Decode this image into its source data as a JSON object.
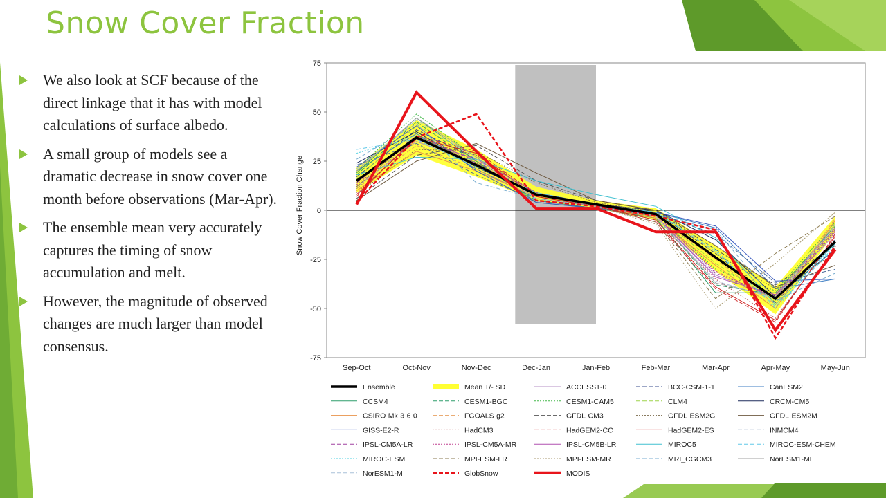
{
  "title": "Snow Cover Fraction",
  "bullets": [
    "We also look at SCF because of the direct linkage that it has with model calculations of surface albedo.",
    "A small group of models see a dramatic decrease in snow cover one month before observations (Mar-Apr).",
    "The ensemble mean very accurately captures the timing of snow accumulation and melt.",
    "However, the magnitude of observed changes are much larger than model consensus."
  ],
  "colors": {
    "accent": "#8dc43f",
    "accent_dark": "#5e9a2a",
    "shade_region": "#c0c0c0",
    "ensemble": "#000000",
    "sd_band": "#ffff33",
    "observations": "#e8141b"
  },
  "chart_data": {
    "type": "line",
    "title": "",
    "xlabel": "",
    "ylabel": "Snow Cover Fraction Change",
    "ylim": [
      -75,
      75
    ],
    "yticks": [
      75,
      50,
      25,
      0,
      -25,
      -50,
      -75
    ],
    "categories": [
      "Sep-Oct",
      "Oct-Nov",
      "Nov-Dec",
      "Dec-Jan",
      "Jan-Feb",
      "Feb-Mar",
      "Mar-Apr",
      "Apr-May",
      "May-Jun"
    ],
    "shaded_region": [
      "Dec-Jan",
      "Jan-Feb"
    ],
    "zero_line": true,
    "band": {
      "name": "Mean +/- SD",
      "color": "#ffff33",
      "lower": [
        9,
        28,
        17,
        5,
        1,
        -5,
        -31,
        -53,
        -11
      ],
      "upper": [
        22,
        46,
        31,
        12,
        5,
        1,
        -18,
        -39,
        -3
      ]
    },
    "series": [
      {
        "name": "Ensemble",
        "color": "#000000",
        "style": "solid",
        "width": 3.5,
        "values": [
          15,
          37,
          23,
          8,
          3,
          -2,
          -24,
          -45,
          -16
        ]
      },
      {
        "name": "ACCESS1-0",
        "color": "#b48fc6",
        "style": "solid",
        "width": 1,
        "values": [
          12,
          35,
          24,
          8,
          2,
          -3,
          -33,
          -44,
          -12
        ]
      },
      {
        "name": "BCC-CSM-1-1",
        "color": "#3a4e8c",
        "style": "dash",
        "width": 1,
        "values": [
          17,
          41,
          26,
          9,
          3,
          -1,
          -22,
          -47,
          -15
        ]
      },
      {
        "name": "CanESM2",
        "color": "#3c7dc3",
        "style": "solid",
        "width": 1,
        "values": [
          20,
          39,
          21,
          6,
          2,
          -1,
          -9,
          -40,
          -35
        ]
      },
      {
        "name": "CCSM4",
        "color": "#2e9d6b",
        "style": "solid",
        "width": 1,
        "values": [
          19,
          47,
          25,
          4,
          1,
          -4,
          -42,
          -42,
          -8
        ]
      },
      {
        "name": "CESM1-BGC",
        "color": "#2e9d6b",
        "style": "dash",
        "width": 1,
        "values": [
          18,
          45,
          24,
          5,
          1,
          -3,
          -38,
          -43,
          -9
        ]
      },
      {
        "name": "CESM1-CAM5",
        "color": "#43b84a",
        "style": "dot",
        "width": 1,
        "values": [
          21,
          49,
          27,
          6,
          2,
          -2,
          -30,
          -41,
          -6
        ]
      },
      {
        "name": "CLM4",
        "color": "#9ed34a",
        "style": "dash",
        "width": 1,
        "values": [
          16,
          43,
          28,
          7,
          2,
          -2,
          -27,
          -46,
          -10
        ]
      },
      {
        "name": "CRCM-CM5",
        "color": "#1d2b5c",
        "style": "solid",
        "width": 1,
        "values": [
          24,
          40,
          22,
          8,
          3,
          0,
          -15,
          -44,
          -20
        ]
      },
      {
        "name": "CSIRO-Mk-3-6-0",
        "color": "#e8924a",
        "style": "solid",
        "width": 1,
        "values": [
          10,
          30,
          20,
          7,
          2,
          -4,
          -28,
          -50,
          -5
        ]
      },
      {
        "name": "FGOALS-g2",
        "color": "#e8a060",
        "style": "dash",
        "width": 1,
        "values": [
          11,
          33,
          21,
          7,
          2,
          -3,
          -25,
          -48,
          -4
        ]
      },
      {
        "name": "GFDL-CM3",
        "color": "#555555",
        "style": "dash",
        "width": 1,
        "values": [
          6,
          28,
          33,
          15,
          5,
          0,
          -20,
          -38,
          -18
        ]
      },
      {
        "name": "GFDL-ESM2G",
        "color": "#7a6a4a",
        "style": "dot",
        "width": 1,
        "values": [
          8,
          31,
          30,
          14,
          4,
          -1,
          -22,
          -40,
          -22
        ]
      },
      {
        "name": "GFDL-ESM2M",
        "color": "#6e5a40",
        "style": "solid",
        "width": 1,
        "values": [
          5,
          25,
          34,
          19,
          5,
          0,
          -18,
          -39,
          -28
        ]
      },
      {
        "name": "GISS-E2-R",
        "color": "#3a5abf",
        "style": "solid",
        "width": 1,
        "values": [
          22,
          43,
          20,
          4,
          1,
          -1,
          -8,
          -36,
          -35
        ]
      },
      {
        "name": "HadCM3",
        "color": "#b04a4a",
        "style": "dot",
        "width": 1,
        "values": [
          9,
          36,
          28,
          9,
          2,
          -5,
          -35,
          -55,
          -14
        ]
      },
      {
        "name": "HadGEM2-CC",
        "color": "#d03030",
        "style": "dash",
        "width": 1,
        "values": [
          7,
          38,
          30,
          8,
          2,
          -6,
          -40,
          -57,
          -12
        ]
      },
      {
        "name": "HadGEM2-ES",
        "color": "#d02020",
        "style": "solid",
        "width": 1,
        "values": [
          8,
          37,
          29,
          7,
          2,
          -5,
          -39,
          -56,
          -13
        ]
      },
      {
        "name": "INMCM4",
        "color": "#4a6a9a",
        "style": "dash",
        "width": 1,
        "values": [
          23,
          34,
          18,
          5,
          1,
          -2,
          -12,
          -37,
          -30
        ]
      },
      {
        "name": "IPSL-CM5A-LR",
        "color": "#a040a0",
        "style": "dash",
        "width": 1,
        "values": [
          14,
          38,
          25,
          8,
          2,
          -2,
          -32,
          -44,
          -10
        ]
      },
      {
        "name": "IPSL-CM5A-MR",
        "color": "#c04090",
        "style": "dot",
        "width": 1,
        "values": [
          13,
          37,
          24,
          8,
          2,
          -3,
          -31,
          -45,
          -11
        ]
      },
      {
        "name": "IPSL-CM5B-LR",
        "color": "#b050b0",
        "style": "solid",
        "width": 1,
        "values": [
          15,
          36,
          26,
          9,
          3,
          -3,
          -34,
          -43,
          -9
        ]
      },
      {
        "name": "MIROC5",
        "color": "#40c0d0",
        "style": "solid",
        "width": 1,
        "values": [
          18,
          27,
          26,
          15,
          8,
          2,
          -14,
          -48,
          -17
        ]
      },
      {
        "name": "MIROC-ESM-CHEM",
        "color": "#60c8e8",
        "style": "dash",
        "width": 1,
        "values": [
          31,
          36,
          22,
          9,
          3,
          -1,
          -21,
          -49,
          -19
        ]
      },
      {
        "name": "MIROC-ESM",
        "color": "#50d0e0",
        "style": "dot",
        "width": 1,
        "values": [
          29,
          38,
          23,
          9,
          3,
          -1,
          -20,
          -50,
          -18
        ]
      },
      {
        "name": "MPI-ESM-LR",
        "color": "#8a7a50",
        "style": "dash",
        "width": 1,
        "values": [
          12,
          38,
          24,
          8,
          2,
          -6,
          -45,
          -22,
          -3
        ]
      },
      {
        "name": "MPI-ESM-MR",
        "color": "#a89a70",
        "style": "dot",
        "width": 1,
        "values": [
          11,
          37,
          23,
          8,
          2,
          -7,
          -50,
          -27,
          -1
        ]
      },
      {
        "name": "MRI_CGCM3",
        "color": "#7aaed0",
        "style": "dash",
        "width": 1,
        "values": [
          26,
          44,
          14,
          6,
          2,
          -2,
          -10,
          -46,
          -32
        ]
      },
      {
        "name": "NorESM1-ME",
        "color": "#a0a0a0",
        "style": "solid",
        "width": 1,
        "values": [
          20,
          47,
          27,
          6,
          2,
          -3,
          -37,
          -44,
          -7
        ]
      },
      {
        "name": "NorESM1-M",
        "color": "#a8c0d8",
        "style": "dash",
        "width": 1,
        "values": [
          21,
          46,
          26,
          6,
          2,
          -3,
          -36,
          -45,
          -8
        ]
      },
      {
        "name": "GlobSnow",
        "color": "#e8141b",
        "style": "dash",
        "width": 2.5,
        "values": [
          4,
          37,
          49,
          5,
          2,
          -3,
          -10,
          -65,
          -18
        ]
      },
      {
        "name": "MODIS",
        "color": "#e8141b",
        "style": "solid",
        "width": 4,
        "values": [
          3,
          60,
          30,
          1,
          1,
          -11,
          -11,
          -61,
          -20
        ]
      }
    ]
  }
}
